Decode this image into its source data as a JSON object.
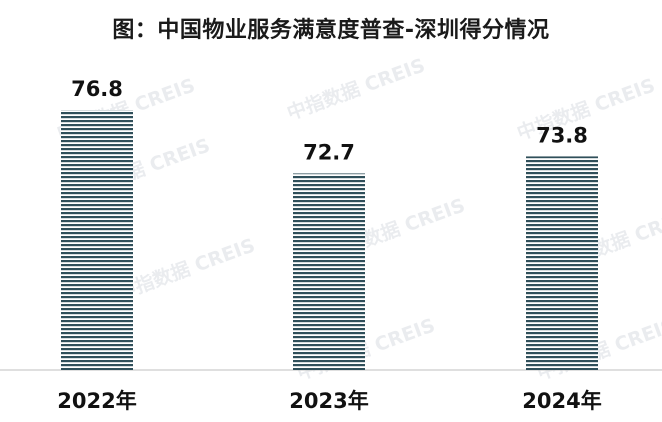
{
  "chart_data": {
    "type": "bar",
    "title": "图：中国物业服务满意度普查-深圳得分情况",
    "categories": [
      "2022年",
      "2023年",
      "2024年"
    ],
    "values": [
      76.8,
      72.7,
      73.8
    ],
    "xlabel": "",
    "ylabel": "",
    "ylim": [
      60,
      78
    ],
    "grid": false,
    "legend": "none",
    "bar_color": "#2f4f5a",
    "bar_stripe_color": "#ffffff"
  },
  "watermark": {
    "text": "中指数据 CREIS"
  }
}
